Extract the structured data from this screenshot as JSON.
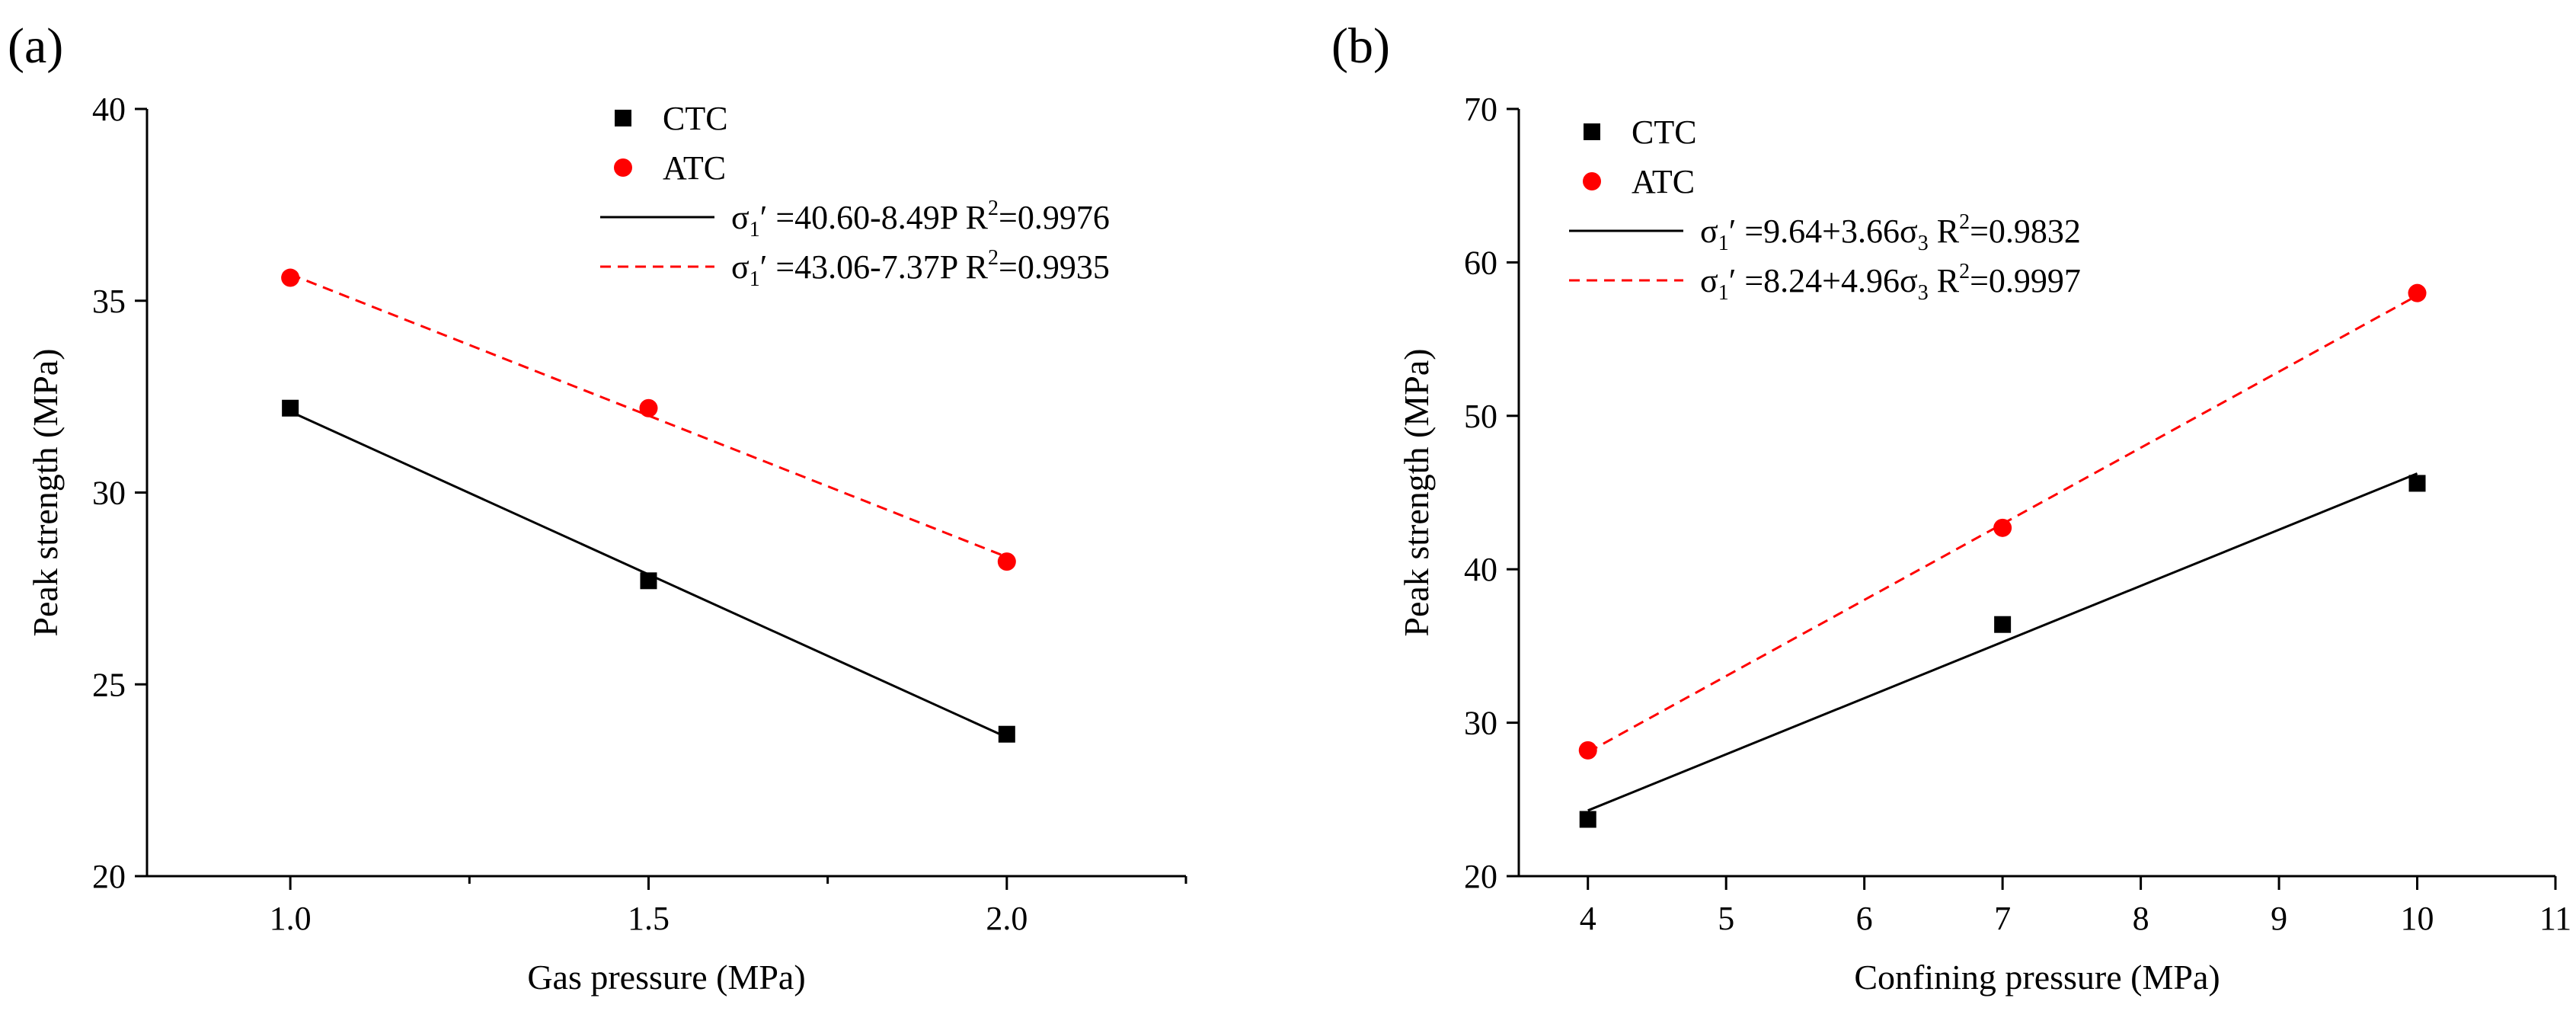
{
  "chart_data": [
    {
      "type": "scatter",
      "panel_label": "(a)",
      "xlabel": "Gas pressure  (MPa)",
      "ylabel": "Peak strength  (MPa)",
      "xlim": [
        0.8,
        2.25
      ],
      "ylim": [
        20,
        40
      ],
      "xticks": [
        1.0,
        1.5,
        2.0
      ],
      "xticks_minor": [
        1.25,
        1.75,
        2.25
      ],
      "xtick_labels": [
        "1.0",
        "1.5",
        "2.0"
      ],
      "yticks": [
        20,
        25,
        30,
        35,
        40
      ],
      "ytick_labels": [
        "20",
        "25",
        "30",
        "35",
        "40"
      ],
      "legend_position": "top-right",
      "grid": false,
      "series": [
        {
          "name": "CTC",
          "marker": "square",
          "color": "#000000",
          "x": [
            1.0,
            1.5,
            2.0
          ],
          "y": [
            32.2,
            27.7,
            23.7
          ],
          "fit": {
            "style": "solid",
            "color": "#000000",
            "intercept": 40.6,
            "slope": -8.49,
            "pre": "σ",
            "sub": "1",
            "post": "′   =40.60-8.49P   R",
            "sup": "2",
            "tail": "=0.9976"
          }
        },
        {
          "name": "ATC",
          "marker": "circle",
          "color": "#ff0000",
          "x": [
            1.0,
            1.5,
            2.0
          ],
          "y": [
            35.6,
            32.2,
            28.2
          ],
          "fit": {
            "style": "dashed",
            "color": "#ff0000",
            "intercept": 43.06,
            "slope": -7.37,
            "pre": "σ",
            "sub": "1",
            "post": "′   =43.06-7.37P   R",
            "sup": "2",
            "tail": "=0.9935"
          }
        }
      ]
    },
    {
      "type": "scatter",
      "panel_label": "(b)",
      "xlabel": "Confining pressure  (MPa)",
      "ylabel": "Peak strength  (MPa)",
      "xlim": [
        3.5,
        11
      ],
      "ylim": [
        20,
        70
      ],
      "xticks": [
        4,
        5,
        6,
        7,
        8,
        9,
        10,
        11
      ],
      "xtick_labels": [
        "4",
        "5",
        "6",
        "7",
        "8",
        "9",
        "10",
        "11"
      ],
      "yticks": [
        20,
        30,
        40,
        50,
        60,
        70
      ],
      "ytick_labels": [
        "20",
        "30",
        "40",
        "50",
        "60",
        "70"
      ],
      "legend_position": "top-left",
      "grid": false,
      "series": [
        {
          "name": "CTC",
          "marker": "square",
          "color": "#000000",
          "x": [
            4,
            7,
            10
          ],
          "y": [
            23.7,
            36.4,
            45.6
          ],
          "fit": {
            "style": "solid",
            "color": "#000000",
            "intercept": 9.64,
            "slope": 3.66,
            "pre": "σ",
            "sub": "1",
            "post": "′   =9.64+3.66σ",
            "sub2": "3",
            "mid": "   R",
            "sup": "2",
            "tail": "=0.9832"
          }
        },
        {
          "name": "ATC",
          "marker": "circle",
          "color": "#ff0000",
          "x": [
            4,
            7,
            10
          ],
          "y": [
            28.2,
            42.7,
            58.0
          ],
          "fit": {
            "style": "dashed",
            "color": "#ff0000",
            "intercept": 8.24,
            "slope": 4.96,
            "pre": "σ",
            "sub": "1",
            "post": "′   =8.24+4.96σ",
            "sub2": "3",
            "mid": "   R",
            "sup": "2",
            "tail": "=0.9997"
          }
        }
      ]
    }
  ]
}
